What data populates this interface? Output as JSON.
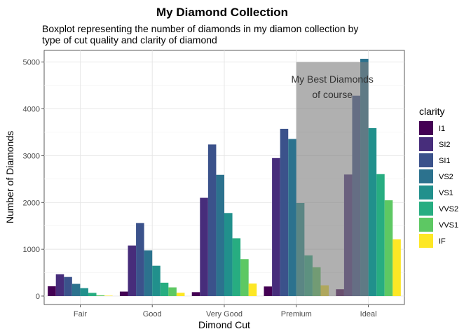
{
  "chart_data": {
    "type": "bar",
    "title": "My Diamond Collection",
    "subtitle_lines": [
      "Boxplot representing the number of diamonds in my diamon collection by",
      "type of cut quality and clarity of diamond"
    ],
    "xlabel": "Dimond Cut",
    "ylabel": "Number of Diamonds",
    "categories": [
      "Fair",
      "Good",
      "Very Good",
      "Premium",
      "Ideal"
    ],
    "ylim": [
      -180,
      5250
    ],
    "yticks": [
      0,
      1000,
      2000,
      3000,
      4000,
      5000
    ],
    "grid": true,
    "legend_title": "clarity",
    "legend_position": "right",
    "series": [
      {
        "name": "I1",
        "color": "#440154",
        "values": [
          210,
          96,
          84,
          205,
          146
        ]
      },
      {
        "name": "SI2",
        "color": "#472D7B",
        "values": [
          466,
          1081,
          2100,
          2949,
          2598
        ]
      },
      {
        "name": "SI1",
        "color": "#3B528B",
        "values": [
          408,
          1560,
          3240,
          3575,
          4282
        ]
      },
      {
        "name": "VS2",
        "color": "#2C728E",
        "values": [
          261,
          978,
          2591,
          3357,
          5071
        ]
      },
      {
        "name": "VS1",
        "color": "#21908C",
        "values": [
          170,
          648,
          1775,
          1989,
          3589
        ]
      },
      {
        "name": "VVS2",
        "color": "#27AD81",
        "values": [
          69,
          286,
          1235,
          870,
          2606
        ]
      },
      {
        "name": "VVS1",
        "color": "#5DC863",
        "values": [
          17,
          186,
          789,
          616,
          2047
        ]
      },
      {
        "name": "IF",
        "color": "#FDE725",
        "values": [
          9,
          71,
          268,
          230,
          1212
        ]
      }
    ],
    "annotation": {
      "lines": [
        "My Best Diamonds",
        "of course"
      ],
      "shade_x_range": [
        "Premium",
        "Ideal"
      ],
      "shade_y_range": [
        0,
        5000
      ],
      "shade_color": "#808080"
    }
  }
}
